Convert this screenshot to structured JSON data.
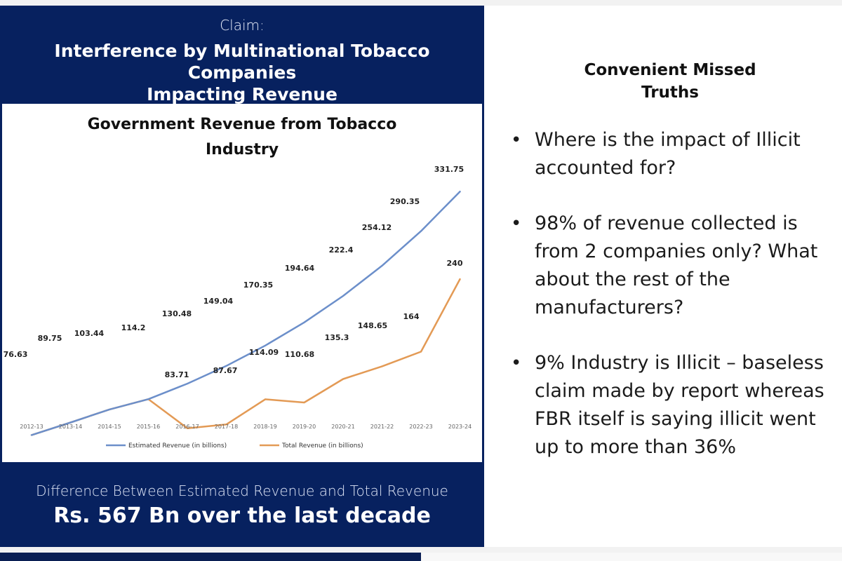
{
  "left": {
    "claim_label": "Claim:",
    "claim_title_line1": "Interference by Multinational Tobacco Companies",
    "claim_title_line2": "Impacting Revenue",
    "footer_line1": "Difference Between Estimated Revenue and Total Revenue",
    "footer_line2": "Rs. 567 Bn over the last decade"
  },
  "right": {
    "title_line1": "Convenient Missed",
    "title_line2": "Truths",
    "bullets": [
      "Where is the impact of Illicit accounted for?",
      "98% of revenue collected is from 2 companies only? What about the rest of the manufacturers?",
      "9% Industry is Illicit – baseless claim made by report whereas FBR itself is saying illicit went up to more than 36%"
    ]
  },
  "chart_data": {
    "type": "line",
    "title_line1": "Government Revenue from Tobacco",
    "title_line2": "Industry",
    "categories": [
      "2012-13",
      "2013-14",
      "2014-15",
      "2015-16",
      "2016-17",
      "2017-18",
      "2018-19",
      "2019-20",
      "2020-21",
      "2021-22",
      "2022-23",
      "2023-24"
    ],
    "series": [
      {
        "name": "Estimated Revenue (in billions)",
        "color": "#6c8fca",
        "values": [
          76.63,
          89.75,
          103.44,
          114.2,
          130.48,
          149.04,
          170.35,
          194.64,
          222.4,
          254.12,
          290.35,
          331.75
        ]
      },
      {
        "name": "Total Revenue (in billions)",
        "color": "#e39a55",
        "values": [
          76.63,
          89.75,
          103.44,
          114.2,
          83.71,
          87.67,
          114.09,
          110.68,
          135.3,
          148.65,
          164,
          240
        ]
      }
    ],
    "labels": {
      "shared": [
        "76.63",
        "89.75",
        "103.44",
        "114.2"
      ],
      "estimated": [
        "130.48",
        "149.04",
        "170.35",
        "194.64",
        "222.4",
        "254.12",
        "290.35",
        "331.75"
      ],
      "total": [
        "83.71",
        "87.67",
        "114.09",
        "110.68",
        "135.3",
        "148.65",
        "164",
        "240"
      ]
    },
    "legend_position": "bottom"
  }
}
